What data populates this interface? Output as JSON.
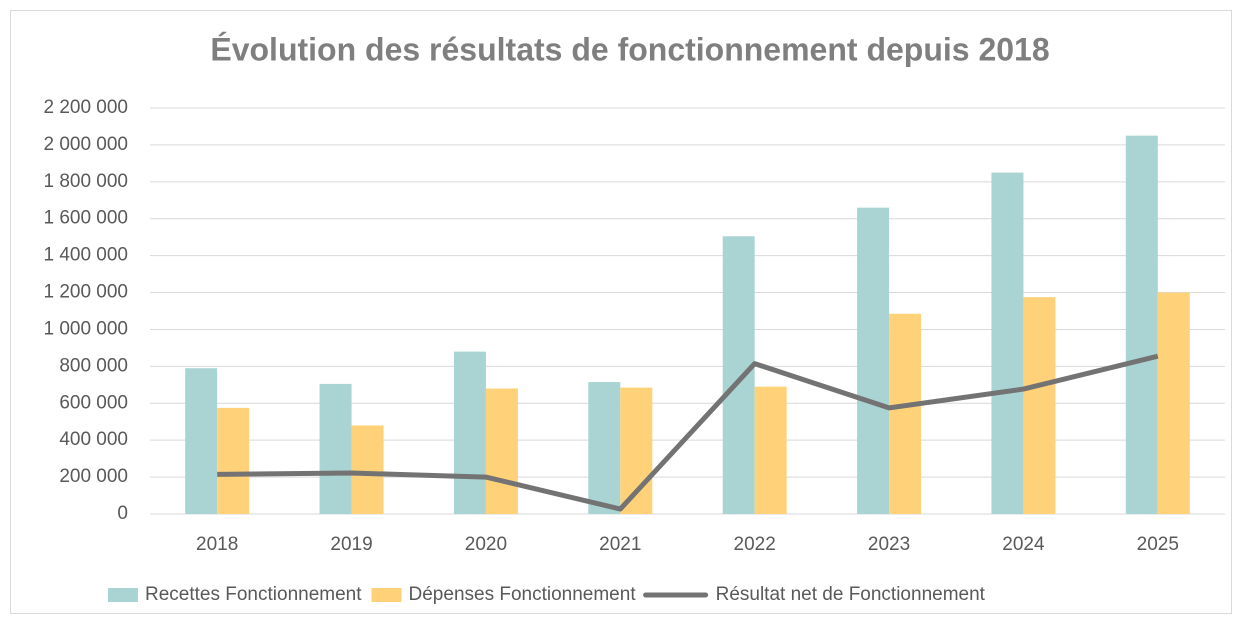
{
  "chart_data": {
    "type": "bar",
    "title": "Évolution des résultats de fonctionnement depuis 2018",
    "categories": [
      "2018",
      "2019",
      "2020",
      "2021",
      "2022",
      "2023",
      "2024",
      "2025"
    ],
    "series": [
      {
        "name": "Recettes Fonctionnement",
        "type": "bar",
        "color": "#a9d4d3",
        "values": [
          790000,
          705000,
          880000,
          715000,
          1505000,
          1660000,
          1850000,
          2050000
        ]
      },
      {
        "name": "Dépenses Fonctionnement",
        "type": "bar",
        "color": "#ffd27a",
        "values": [
          575000,
          480000,
          680000,
          685000,
          690000,
          1085000,
          1175000,
          1200000
        ]
      },
      {
        "name": "Résultat net de Fonctionnement",
        "type": "line",
        "color": "#737373",
        "values": [
          215000,
          222000,
          200000,
          27000,
          815000,
          575000,
          677000,
          855000
        ]
      }
    ],
    "ylim": [
      0,
      2200000
    ],
    "yticks": [
      0,
      {
        "value": 200000,
        "label": "200 000"
      },
      {
        "value": 400000,
        "label": "400 000"
      },
      {
        "value": 600000,
        "label": "600 000"
      },
      {
        "value": 800000,
        "label": "800 000"
      },
      {
        "value": 1000000,
        "label": "1 000 000"
      },
      {
        "value": 1200000,
        "label": "1 200 000"
      },
      {
        "value": 1400000,
        "label": "1 400 000"
      },
      {
        "value": 1600000,
        "label": "1 600 000"
      },
      {
        "value": 1800000,
        "label": "1 800 000"
      },
      {
        "value": 2000000,
        "label": "2 000 000"
      },
      {
        "value": 2200000,
        "label": "2 200 000"
      }
    ],
    "grid": true,
    "legend": "bottom"
  }
}
